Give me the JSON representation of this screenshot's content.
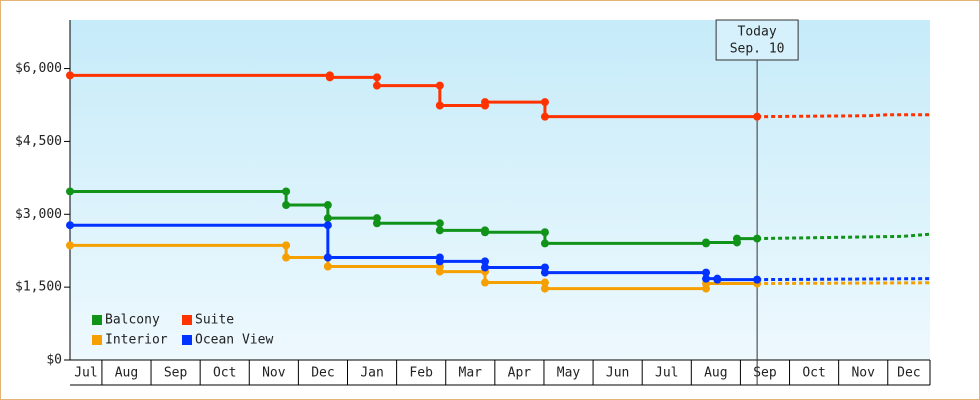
{
  "chart_data": {
    "type": "step",
    "categories": [
      "Jul",
      "Aug",
      "Sep",
      "Oct",
      "Nov",
      "Dec",
      "Jan",
      "Feb",
      "Mar",
      "Apr",
      "May",
      "Jun",
      "Jul",
      "Aug",
      "Sep",
      "Oct",
      "Nov",
      "Dec"
    ],
    "xlim": [
      0.35,
      17.86
    ],
    "xticks": [
      1,
      2,
      3,
      4,
      5,
      6,
      7,
      8,
      9,
      10,
      11,
      12,
      13,
      14,
      15,
      16,
      17
    ],
    "ylim": [
      0,
      7000
    ],
    "yticks": [
      {
        "value": 0,
        "label": "$0"
      },
      {
        "value": 1500,
        "label": "$1,500"
      },
      {
        "value": 3000,
        "label": "$3,000"
      },
      {
        "value": 4500,
        "label": "$4,500"
      },
      {
        "value": 6000,
        "label": "$6,000"
      }
    ],
    "today": {
      "x": 14.34,
      "label": "Today",
      "date": "Sep. 10"
    },
    "legend": "lower-left",
    "series": [
      {
        "name": "Balcony",
        "color": "#11931a",
        "x": [
          0.35,
          4.75,
          5.6,
          6.6,
          7.88,
          8.8,
          10.02,
          13.3,
          13.93
        ],
        "values": [
          3470,
          3190,
          2920,
          2815,
          2670,
          2630,
          2400,
          2420,
          2500
        ],
        "forecast_x": [
          14.34,
          17.3,
          17.86
        ],
        "forecast_values": [
          2500,
          2545,
          2590
        ]
      },
      {
        "name": "Suite",
        "color": "#ff3300",
        "x": [
          0.35,
          5.64,
          6.6,
          7.88,
          8.8,
          10.02
        ],
        "values": [
          5860,
          5820,
          5650,
          5240,
          5310,
          5010
        ],
        "forecast_x": [
          14.34,
          16.65,
          17.0,
          17.86
        ],
        "forecast_values": [
          5010,
          5030,
          5050,
          5050
        ]
      },
      {
        "name": "Interior",
        "color": "#f5a000",
        "x": [
          0.35,
          4.75,
          5.6,
          7.88,
          8.8,
          10.02,
          13.3
        ],
        "values": [
          2360,
          2110,
          1925,
          1820,
          1595,
          1470,
          1575
        ],
        "forecast_x": [
          14.34,
          17.86
        ],
        "forecast_values": [
          1575,
          1590
        ]
      },
      {
        "name": "Ocean View",
        "color": "#0033ff",
        "x": [
          0.35,
          5.6,
          7.88,
          8.8,
          10.02,
          13.3,
          13.53
        ],
        "values": [
          2775,
          2110,
          2030,
          1905,
          1800,
          1675,
          1655
        ],
        "forecast_x": [
          14.34,
          17.86
        ],
        "forecast_values": [
          1655,
          1675
        ]
      }
    ]
  }
}
